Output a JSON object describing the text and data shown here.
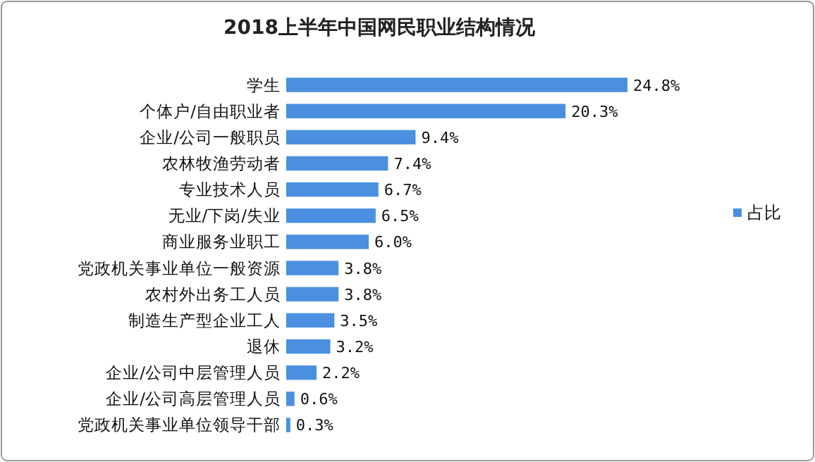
{
  "chart_data": {
    "type": "bar",
    "orientation": "horizontal",
    "title": "2018上半年中国网民职业结构情况",
    "categories": [
      "学生",
      "个体户/自由职业者",
      "企业/公司一般职员",
      "农林牧渔劳动者",
      "专业技术人员",
      "无业/下岗/失业",
      "商业服务业职工",
      "党政机关事业单位一般资源",
      "农村外出务工人员",
      "制造生产型企业工人",
      "退休",
      "企业/公司中层管理人员",
      "企业/公司高层管理人员",
      "党政机关事业单位领导干部"
    ],
    "series": [
      {
        "name": "占比",
        "color": "#4a8fe0",
        "values": [
          24.8,
          20.3,
          9.4,
          7.4,
          6.7,
          6.5,
          6.0,
          3.8,
          3.8,
          3.5,
          3.2,
          2.2,
          0.6,
          0.3
        ],
        "value_labels": [
          "24.8%",
          "20.3%",
          "9.4%",
          "7.4%",
          "6.7%",
          "6.5%",
          "6.0%",
          "3.8%",
          "3.8%",
          "3.5%",
          "3.2%",
          "2.2%",
          "0.6%",
          "0.3%"
        ]
      }
    ],
    "legend": "right"
  }
}
